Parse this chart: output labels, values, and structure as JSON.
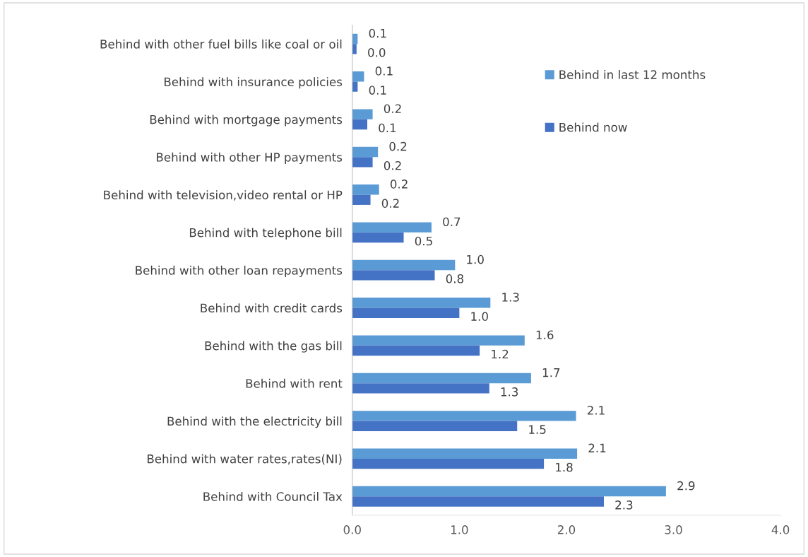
{
  "chart_data": {
    "type": "bar",
    "orientation": "horizontal",
    "categories": [
      "Behind with other fuel bills like coal or oil",
      "Behind with insurance policies",
      "Behind with mortgage payments",
      "Behind with other HP payments",
      "Behind with television,video rental or HP",
      "Behind with telephone bill",
      "Behind with other loan repayments",
      "Behind with credit cards",
      "Behind with the gas bill",
      "Behind with rent",
      "Behind with the electricity bill",
      "Behind with water rates,rates(NI)",
      "Behind with Council Tax"
    ],
    "series": [
      {
        "name": "Behind in last 12 months",
        "color": "#5b9bd5",
        "values": [
          0.05,
          0.11,
          0.19,
          0.24,
          0.25,
          0.74,
          0.96,
          1.29,
          1.61,
          1.67,
          2.09,
          2.1,
          2.93
        ],
        "value_labels": [
          "0.1",
          "0.1",
          "0.2",
          "0.2",
          "0.2",
          "0.7",
          "1.0",
          "1.3",
          "1.6",
          "1.7",
          "2.1",
          "2.1",
          "2.9"
        ]
      },
      {
        "name": "Behind now",
        "color": "#4472c4",
        "values": [
          0.04,
          0.05,
          0.14,
          0.19,
          0.17,
          0.48,
          0.77,
          1.0,
          1.19,
          1.28,
          1.54,
          1.79,
          2.35
        ],
        "value_labels": [
          "0.0",
          "0.1",
          "0.1",
          "0.2",
          "0.2",
          "0.5",
          "0.8",
          "1.0",
          "1.2",
          "1.3",
          "1.5",
          "1.8",
          "2.3"
        ]
      }
    ],
    "xlim": [
      0,
      4
    ],
    "xticks": [
      {
        "value": 0,
        "label": "0.0"
      },
      {
        "value": 1,
        "label": "1.0"
      },
      {
        "value": 2,
        "label": "2.0"
      },
      {
        "value": 3,
        "label": "3.0"
      },
      {
        "value": 4,
        "label": "4.0"
      }
    ],
    "grid": false,
    "legend": "top right"
  }
}
